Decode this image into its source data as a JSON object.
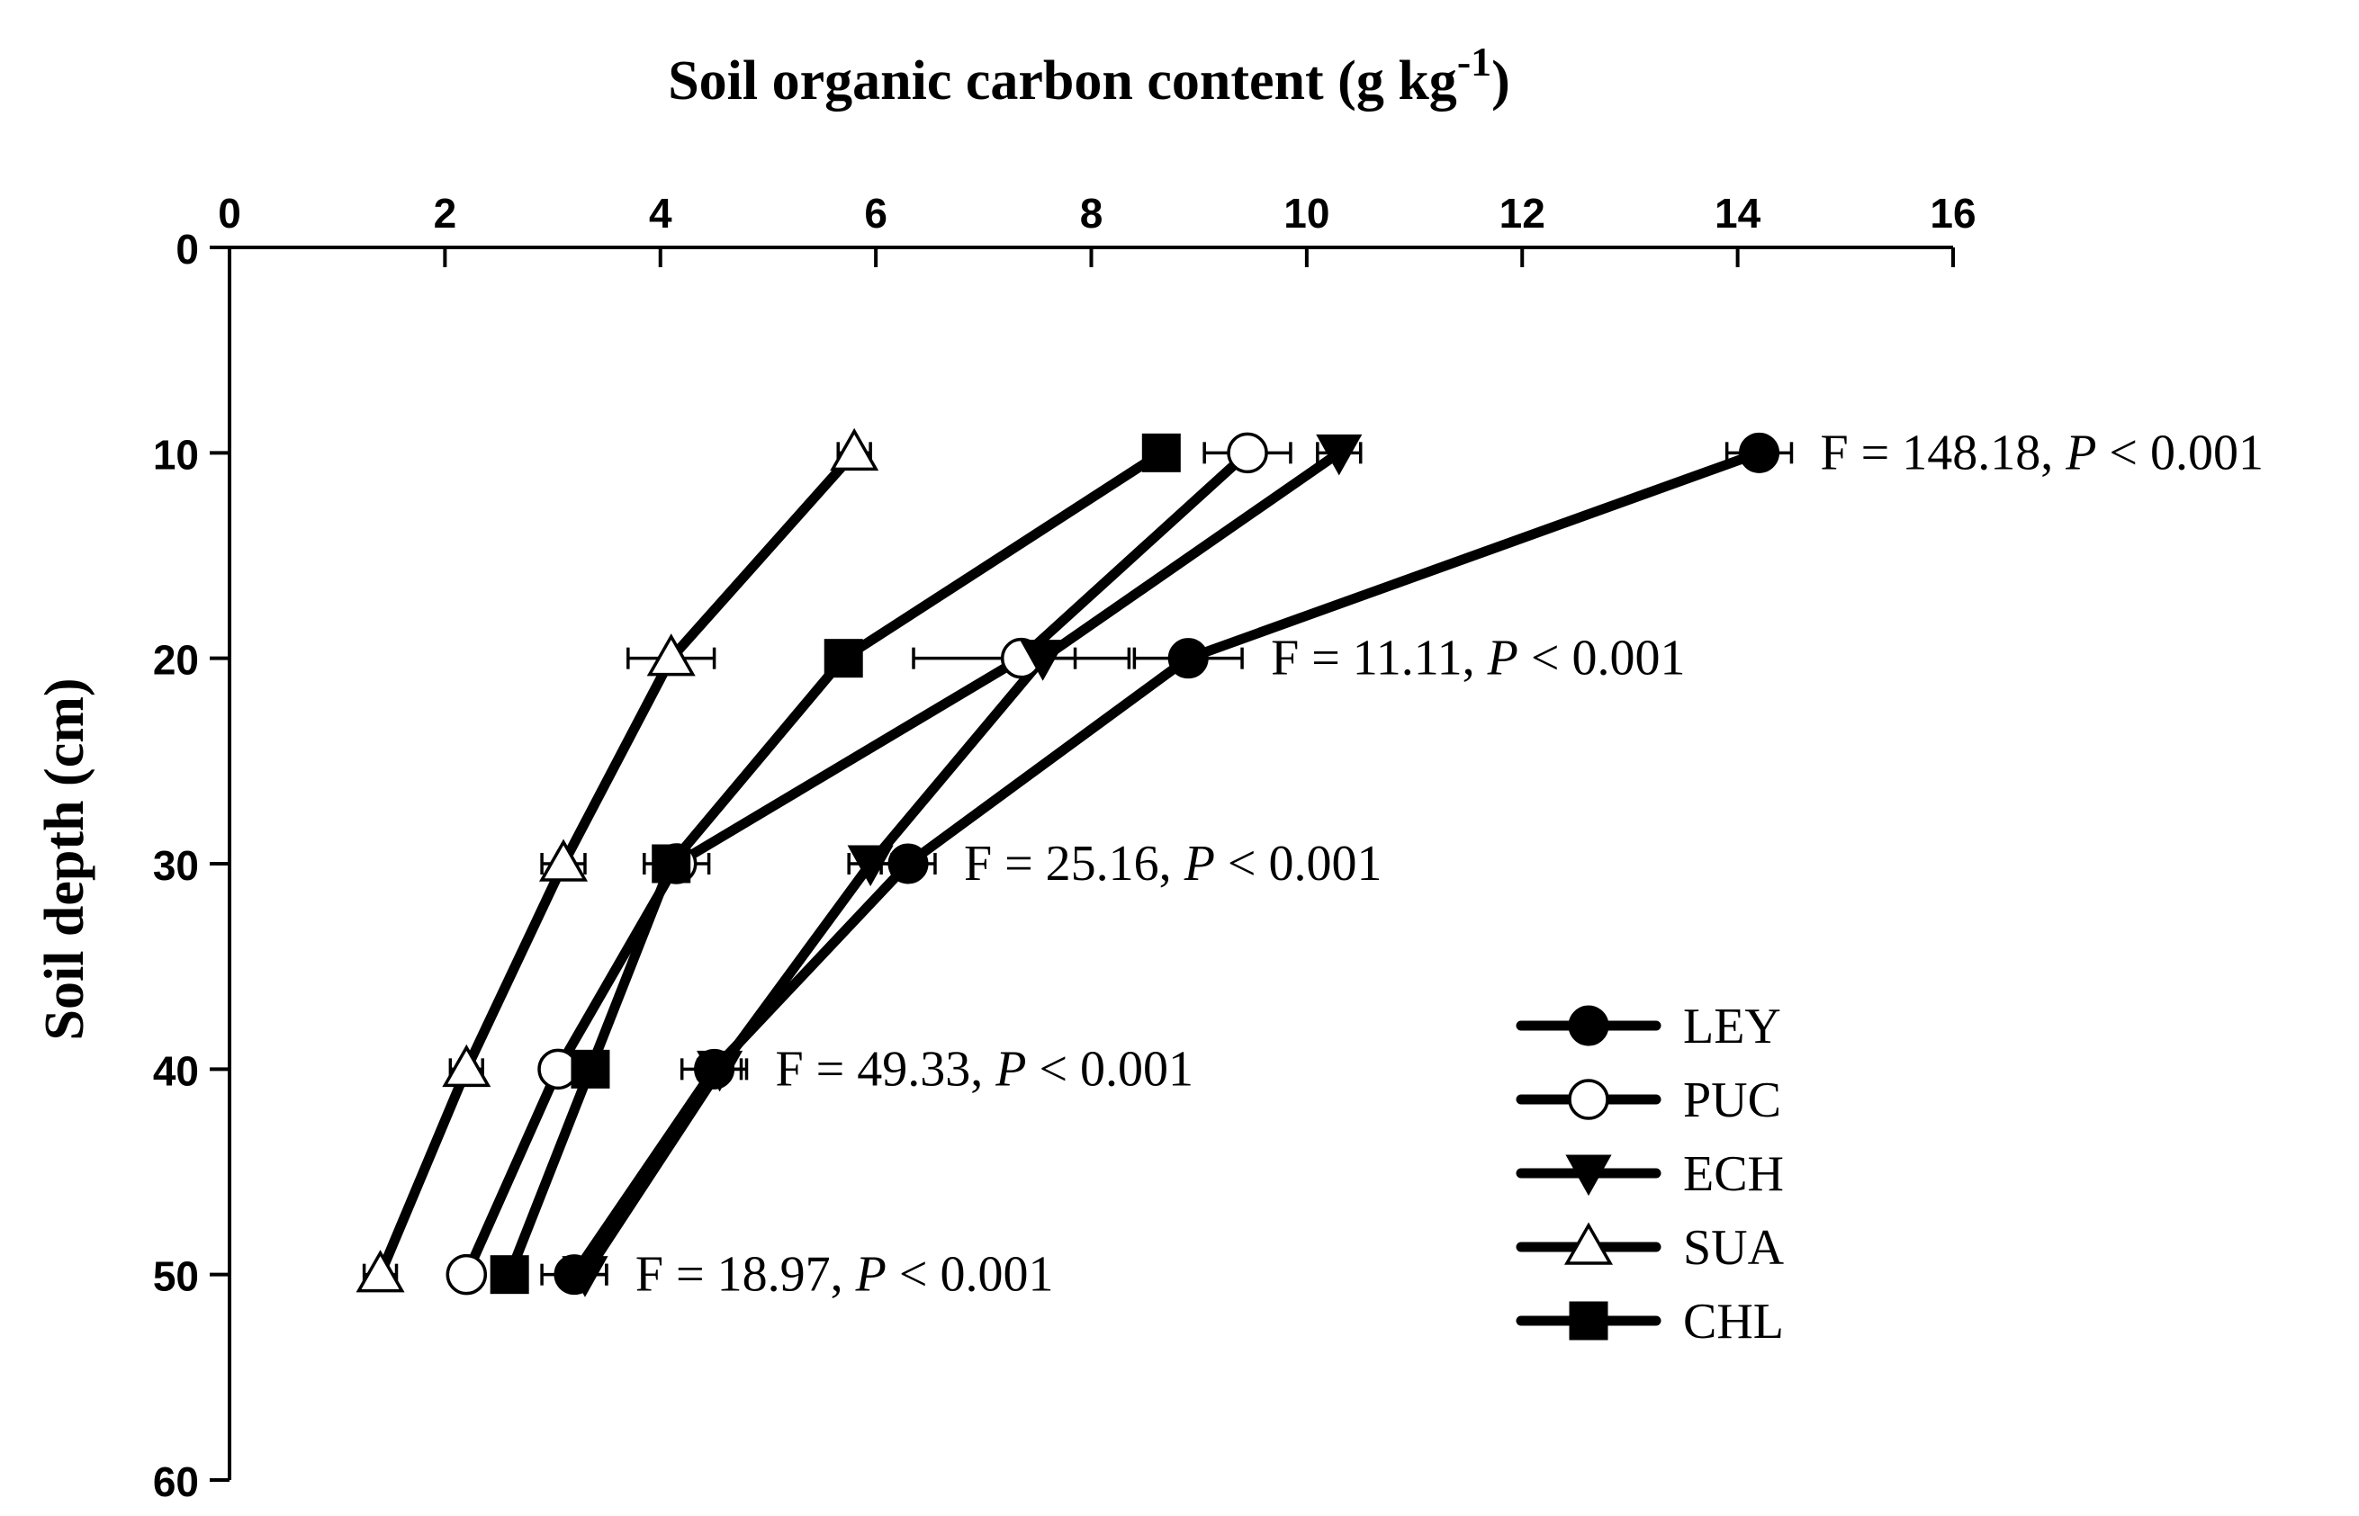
{
  "chart_data": {
    "type": "line",
    "title": "",
    "xlabel": "Soil organic carbon content (g kg",
    "xlabel_superscript": "-1",
    "xlabel_close": ")",
    "ylabel": "Soil depth (cm)",
    "x_axis_position": "top",
    "y_axis_inverted": true,
    "xlim": [
      0,
      16
    ],
    "ylim": [
      0,
      60
    ],
    "x_ticks": [
      0,
      2,
      4,
      6,
      8,
      10,
      12,
      14,
      16
    ],
    "y_ticks": [
      0,
      10,
      20,
      30,
      40,
      50,
      60
    ],
    "grid": false,
    "legend_position": "lower-right",
    "depths": [
      10,
      20,
      30,
      40,
      50
    ],
    "series": [
      {
        "name": "LEY",
        "marker": "circle-filled",
        "values": [
          14.2,
          8.9,
          6.3,
          4.5,
          3.2
        ],
        "errors": [
          0.3,
          0.5,
          0.25,
          0.3,
          0.3
        ]
      },
      {
        "name": "PUC",
        "marker": "circle-open",
        "values": [
          9.45,
          7.35,
          4.15,
          3.05,
          2.2
        ],
        "errors": [
          0.4,
          1.0,
          0.3,
          0.15,
          0.15
        ]
      },
      {
        "name": "ECH",
        "marker": "triangle-down-filled",
        "values": [
          10.3,
          7.55,
          5.95,
          4.55,
          3.3
        ],
        "errors": [
          0.2,
          0.3,
          0.2,
          0.2,
          0.2
        ]
      },
      {
        "name": "SUA",
        "marker": "triangle-up-open",
        "values": [
          5.8,
          4.1,
          3.1,
          2.2,
          1.4
        ],
        "errors": [
          0.15,
          0.4,
          0.2,
          0.15,
          0.15
        ]
      },
      {
        "name": "CHL",
        "marker": "square-filled",
        "values": [
          8.65,
          5.7,
          4.1,
          3.35,
          2.6
        ],
        "errors": [
          0.15,
          0.1,
          0.15,
          0.1,
          0.1
        ]
      }
    ],
    "annotations": [
      {
        "depth": 10,
        "text_main": "F = 148.18, ",
        "text_italic": "P",
        "text_tail": " < 0.001"
      },
      {
        "depth": 20,
        "text_main": "F = 11.11, ",
        "text_italic": "P",
        "text_tail": " < 0.001"
      },
      {
        "depth": 30,
        "text_main": "F = 25.16, ",
        "text_italic": "P",
        "text_tail": " < 0.001"
      },
      {
        "depth": 40,
        "text_main": "F = 49.33, ",
        "text_italic": "P",
        "text_tail": " < 0.001"
      },
      {
        "depth": 50,
        "text_main": "F = 18.97, ",
        "text_italic": "P",
        "text_tail": " < 0.001"
      }
    ],
    "colors": {
      "line": "#000000",
      "fill": "#000000",
      "open_fill": "#ffffff"
    }
  }
}
